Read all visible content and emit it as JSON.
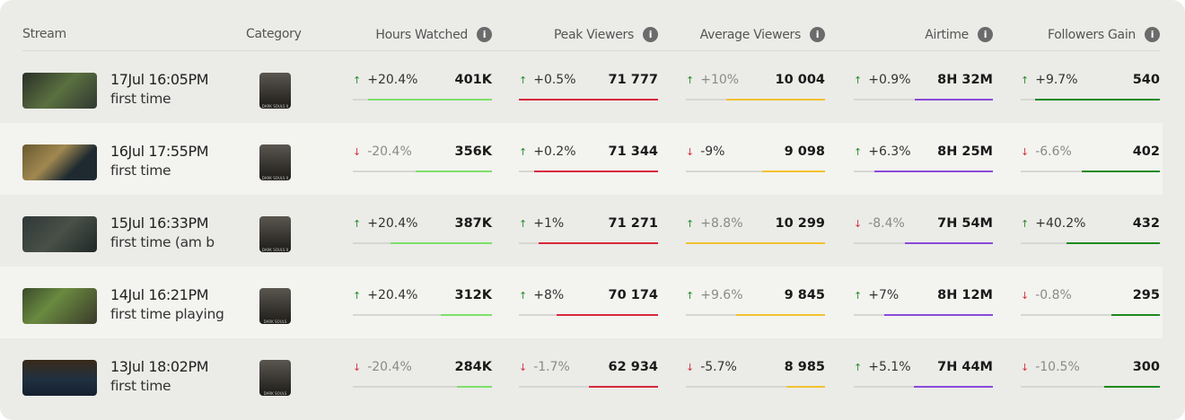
{
  "headers": {
    "stream": "Stream",
    "category": "Category",
    "metrics": [
      "Hours Watched",
      "Peak Viewers",
      "Average Viewers",
      "Airtime",
      "Followers Gain"
    ],
    "info_icon": "info-icon"
  },
  "metric_colors": [
    "#7ee06a",
    "#d8283c",
    "#f2c230",
    "#8a4ad8",
    "#1e8a1e"
  ],
  "rows": [
    {
      "date": "17Jul 16:05PM",
      "title": "first time",
      "category": "DARK SOULS II",
      "metrics": [
        {
          "delta": "+20.4%",
          "dir": "up",
          "muted": false,
          "value": "401K",
          "fill": 0.89
        },
        {
          "delta": "+0.5%",
          "dir": "up",
          "muted": false,
          "value": "71 777",
          "fill": 1.0
        },
        {
          "delta": "+10%",
          "dir": "up",
          "muted": true,
          "value": "10 004",
          "fill": 0.71
        },
        {
          "delta": "+0.9%",
          "dir": "up",
          "muted": false,
          "value": "8H 32M",
          "fill": 0.56
        },
        {
          "delta": "+9.7%",
          "dir": "up",
          "muted": false,
          "value": "540",
          "fill": 0.9
        }
      ]
    },
    {
      "date": "16Jul 17:55PM",
      "title": "first time",
      "category": "DARK SOULS II",
      "metrics": [
        {
          "delta": "-20.4%",
          "dir": "down",
          "muted": true,
          "value": "356K",
          "fill": 0.55
        },
        {
          "delta": "+0.2%",
          "dir": "up",
          "muted": false,
          "value": "71 344",
          "fill": 0.89
        },
        {
          "delta": "-9%",
          "dir": "down",
          "muted": false,
          "value": "9 098",
          "fill": 0.45
        },
        {
          "delta": "+6.3%",
          "dir": "up",
          "muted": false,
          "value": "8H 25M",
          "fill": 0.85
        },
        {
          "delta": "-6.6%",
          "dir": "down",
          "muted": true,
          "value": "402",
          "fill": 0.56
        }
      ]
    },
    {
      "date": "15Jul 16:33PM",
      "title": "first time (am b",
      "category": "DARK SOULS II",
      "metrics": [
        {
          "delta": "+20.4%",
          "dir": "up",
          "muted": false,
          "value": "387K",
          "fill": 0.73
        },
        {
          "delta": "+1%",
          "dir": "up",
          "muted": false,
          "value": "71 271",
          "fill": 0.86
        },
        {
          "delta": "+8.8%",
          "dir": "up",
          "muted": true,
          "value": "10 299",
          "fill": 1.0
        },
        {
          "delta": "-8.4%",
          "dir": "down",
          "muted": true,
          "value": "7H 54M",
          "fill": 0.63
        },
        {
          "delta": "+40.2%",
          "dir": "up",
          "muted": false,
          "value": "432",
          "fill": 0.67
        }
      ]
    },
    {
      "date": "14Jul 16:21PM",
      "title": "first time playing",
      "category": "DARK SOULS",
      "metrics": [
        {
          "delta": "+20.4%",
          "dir": "up",
          "muted": false,
          "value": "312K",
          "fill": 0.37
        },
        {
          "delta": "+8%",
          "dir": "up",
          "muted": false,
          "value": "70 174",
          "fill": 0.73
        },
        {
          "delta": "+9.6%",
          "dir": "up",
          "muted": true,
          "value": "9 845",
          "fill": 0.64
        },
        {
          "delta": "+7%",
          "dir": "up",
          "muted": false,
          "value": "8H 12M",
          "fill": 0.78
        },
        {
          "delta": "-0.8%",
          "dir": "down",
          "muted": true,
          "value": "295",
          "fill": 0.35
        }
      ]
    },
    {
      "date": "13Jul 18:02PM",
      "title": "first time",
      "category": "DARK SOULS",
      "metrics": [
        {
          "delta": "-20.4%",
          "dir": "down",
          "muted": true,
          "value": "284K",
          "fill": 0.25
        },
        {
          "delta": "-1.7%",
          "dir": "down",
          "muted": true,
          "value": "62 934",
          "fill": 0.5
        },
        {
          "delta": "-5.7%",
          "dir": "down",
          "muted": false,
          "value": "8 985",
          "fill": 0.28
        },
        {
          "delta": "+5.1%",
          "dir": "up",
          "muted": false,
          "value": "7H 44M",
          "fill": 0.57
        },
        {
          "delta": "-10.5%",
          "dir": "down",
          "muted": true,
          "value": "300",
          "fill": 0.4
        }
      ]
    }
  ]
}
